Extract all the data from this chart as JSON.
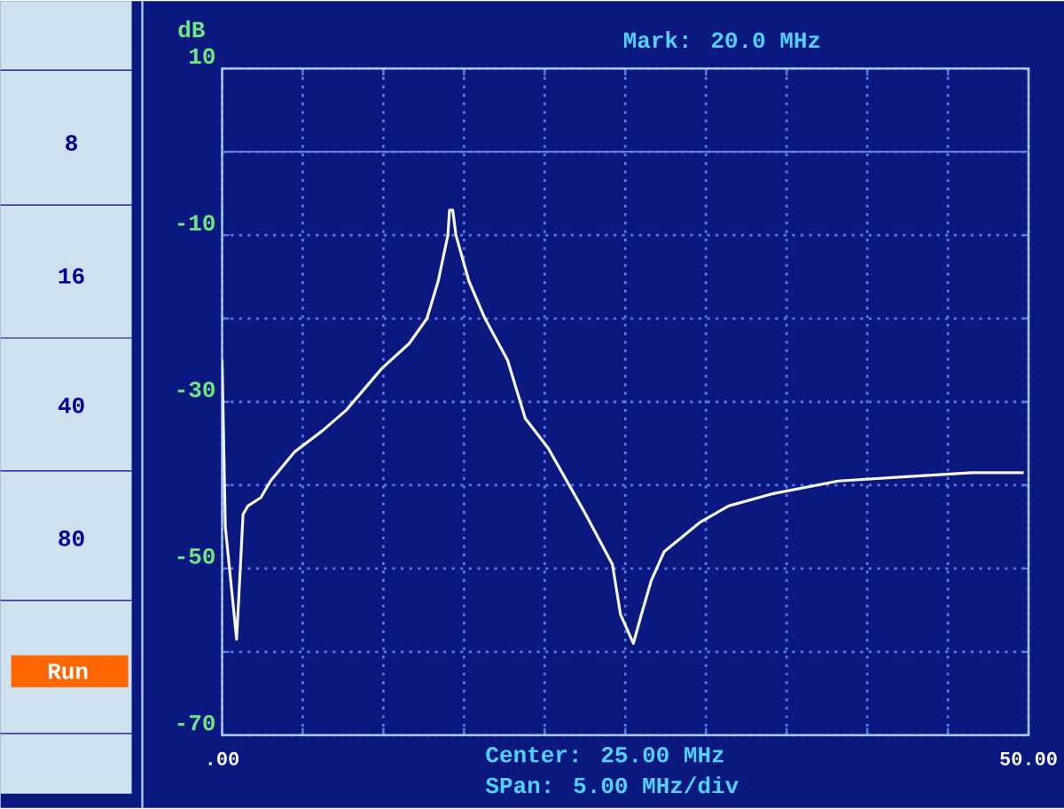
{
  "chart_data": {
    "type": "line",
    "title": "Mark:     20.0 MHz",
    "ylabel": "dB",
    "x": [
      0,
      0.2,
      0.9,
      1.3,
      1.6,
      2.4,
      3.0,
      4.5,
      6.2,
      7.7,
      9.9,
      11.6,
      12.7,
      13.4,
      14.0,
      14.1,
      14.3,
      14.5,
      15.3,
      16.3,
      17.7,
      18.8,
      20.2,
      22.4,
      24.2,
      24.7,
      25.5,
      26.0,
      26.6,
      27.4,
      29.6,
      31.4,
      34.2,
      38.2,
      42.2,
      46.5,
      49.7
    ],
    "series": [
      {
        "color": "#f4f4dc",
        "values": [
          -25,
          -45,
          -58.5,
          -43.5,
          -42.5,
          -41.5,
          -39.5,
          -36,
          -33.5,
          -31,
          -26,
          -23,
          -20,
          -15.5,
          -10,
          -7,
          -7,
          -10,
          -15.5,
          -20,
          -25,
          -32,
          -35.5,
          -43,
          -49.5,
          -55.5,
          -59,
          -55.5,
          -51.5,
          -48,
          -44.5,
          -42.5,
          -41,
          -39.5,
          -39,
          -38.5,
          -38.5
        ]
      }
    ],
    "xlim": [
      0,
      50
    ],
    "ylim": [
      -70,
      10
    ],
    "xticks": [
      {
        "value": 0,
        "label": ".00"
      },
      {
        "value": 5,
        "label": null
      },
      {
        "value": 10,
        "label": null
      },
      {
        "value": 15,
        "label": null
      },
      {
        "value": 20,
        "label": null
      },
      {
        "value": 25,
        "label": null
      },
      {
        "value": 30,
        "label": null
      },
      {
        "value": 35,
        "label": null
      },
      {
        "value": 40,
        "label": null
      },
      {
        "value": 45,
        "label": null
      },
      {
        "value": 50,
        "label": "50.00"
      }
    ],
    "yticks": [
      -70,
      {
        "value": -60,
        "label": null
      },
      -50,
      {
        "value": -40,
        "label": null
      },
      -30,
      {
        "value": -20,
        "label": null
      },
      -10,
      {
        "value": 0,
        "label": null
      },
      10
    ],
    "grid": true,
    "ref_lines": [
      {
        "axis": "y",
        "value": 0,
        "color": "#6a7ee8"
      }
    ],
    "annotations": [
      "Center:  25.00 MHz",
      "SPan:   5.00 MHz/div",
      "8",
      "16",
      "40",
      "80",
      "Run"
    ]
  }
}
